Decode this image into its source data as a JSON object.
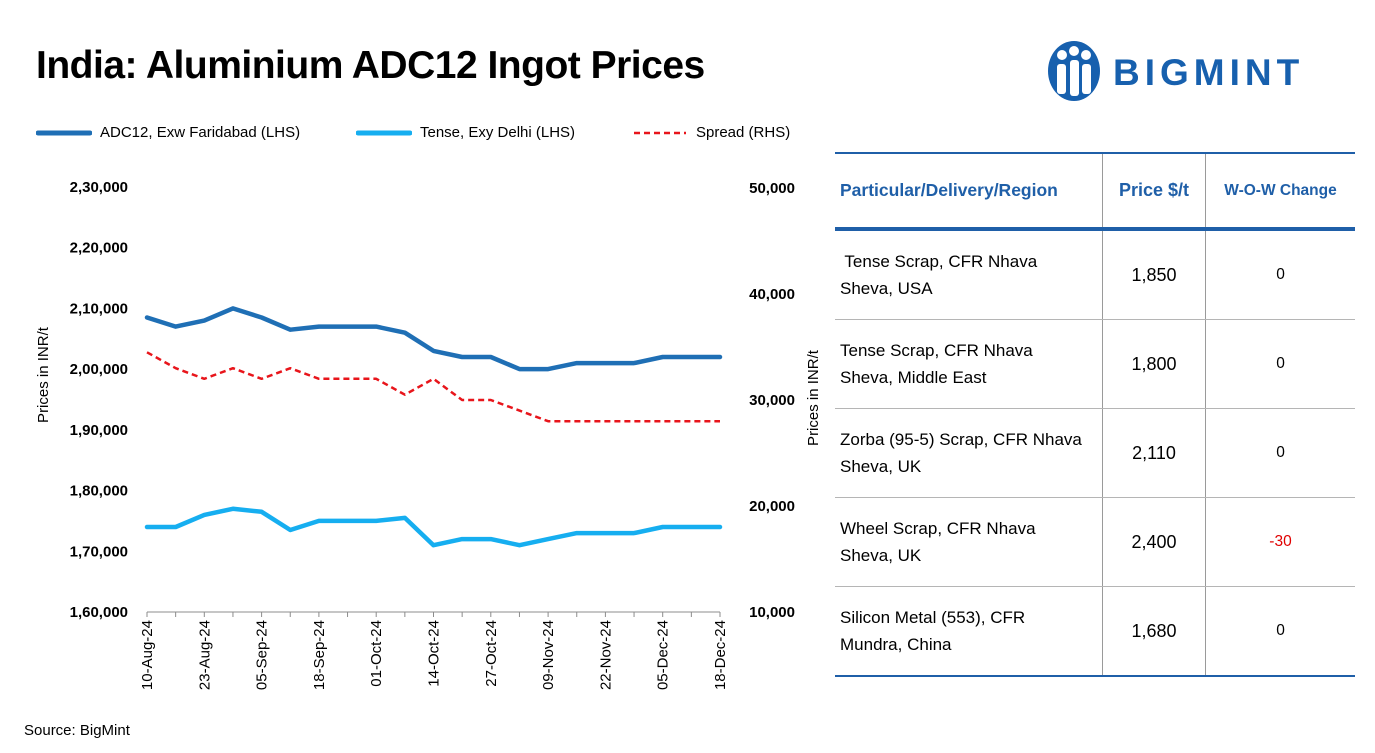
{
  "title": "India: Aluminium ADC12 Ingot Prices",
  "logo": {
    "text": "BIGMINT",
    "icon": "bigmint-logo-icon",
    "color": "#1760ae"
  },
  "source": "Source: BigMint",
  "chart_data": {
    "type": "line",
    "x": [
      "10-Aug-24",
      "17-Aug-24",
      "23-Aug-24",
      "31-Aug-24",
      "05-Sep-24",
      "11-Sep-24",
      "18-Sep-24",
      "25-Sep-24",
      "01-Oct-24",
      "07-Oct-24",
      "14-Oct-24",
      "20-Oct-24",
      "27-Oct-24",
      "02-Nov-24",
      "09-Nov-24",
      "15-Nov-24",
      "22-Nov-24",
      "29-Nov-24",
      "05-Dec-24",
      "11-Dec-24",
      "18-Dec-24"
    ],
    "x_tick_labels": [
      "10-Aug-24",
      "23-Aug-24",
      "05-Sep-24",
      "18-Sep-24",
      "01-Oct-24",
      "14-Oct-24",
      "27-Oct-24",
      "09-Nov-24",
      "22-Nov-24",
      "05-Dec-24",
      "18-Dec-24"
    ],
    "ylabel_left": "Prices in INR/t",
    "ylabel_right": "Prices in INR/t",
    "ylim_left": [
      160000,
      230000
    ],
    "ylim_right": [
      10000,
      50000
    ],
    "yticks_left": [
      "1,60,000",
      "1,70,000",
      "1,80,000",
      "1,90,000",
      "2,00,000",
      "2,10,000",
      "2,20,000",
      "2,30,000"
    ],
    "yticks_right": [
      "10,000",
      "20,000",
      "30,000",
      "40,000",
      "50,000"
    ],
    "legend_placement": "top",
    "grid": false,
    "series": [
      {
        "name": "ADC12, Exw Faridabad (LHS)",
        "axis": "left",
        "color": "#1f6fb5",
        "style": "solid",
        "values": [
          208500,
          207000,
          208000,
          210000,
          208500,
          206500,
          207000,
          207000,
          207000,
          206000,
          203000,
          202000,
          202000,
          200000,
          200000,
          201000,
          201000,
          201000,
          202000,
          202000,
          202000
        ]
      },
      {
        "name": "Tense, Exy Delhi (LHS)",
        "axis": "left",
        "color": "#16aef0",
        "style": "solid",
        "values": [
          174000,
          174000,
          176000,
          177000,
          176500,
          173500,
          175000,
          175000,
          175000,
          175500,
          171000,
          172000,
          172000,
          171000,
          172000,
          173000,
          173000,
          173000,
          174000,
          174000,
          174000
        ]
      },
      {
        "name": "Spread (RHS)",
        "axis": "right",
        "color": "#e8151b",
        "style": "dashed",
        "values": [
          34500,
          33000,
          32000,
          33000,
          32000,
          33000,
          32000,
          32000,
          32000,
          30500,
          32000,
          30000,
          30000,
          29000,
          28000,
          28000,
          28000,
          28000,
          28000,
          28000,
          28000
        ]
      }
    ]
  },
  "table": {
    "headers": [
      "Particular/Delivery/Region",
      "Price $/t",
      "W-O-W Change"
    ],
    "rows": [
      {
        "line1": " Tense Scrap, CFR Nhava",
        "line2": "Sheva, USA",
        "price": "1,850",
        "change": "0"
      },
      {
        "line1": "Tense Scrap, CFR Nhava",
        "line2": "Sheva, Middle East",
        "price": "1,800",
        "change": "0"
      },
      {
        "line1": "Zorba (95-5) Scrap, CFR Nhava",
        "line2": "Sheva, UK",
        "price": "2,110",
        "change": "0"
      },
      {
        "line1": "Wheel Scrap, CFR Nhava",
        "line2": "Sheva, UK",
        "price": "2,400",
        "change": "-30"
      },
      {
        "line1": "Silicon Metal (553), CFR",
        "line2": "Mundra, China",
        "price": "1,680",
        "change": "0"
      }
    ]
  }
}
